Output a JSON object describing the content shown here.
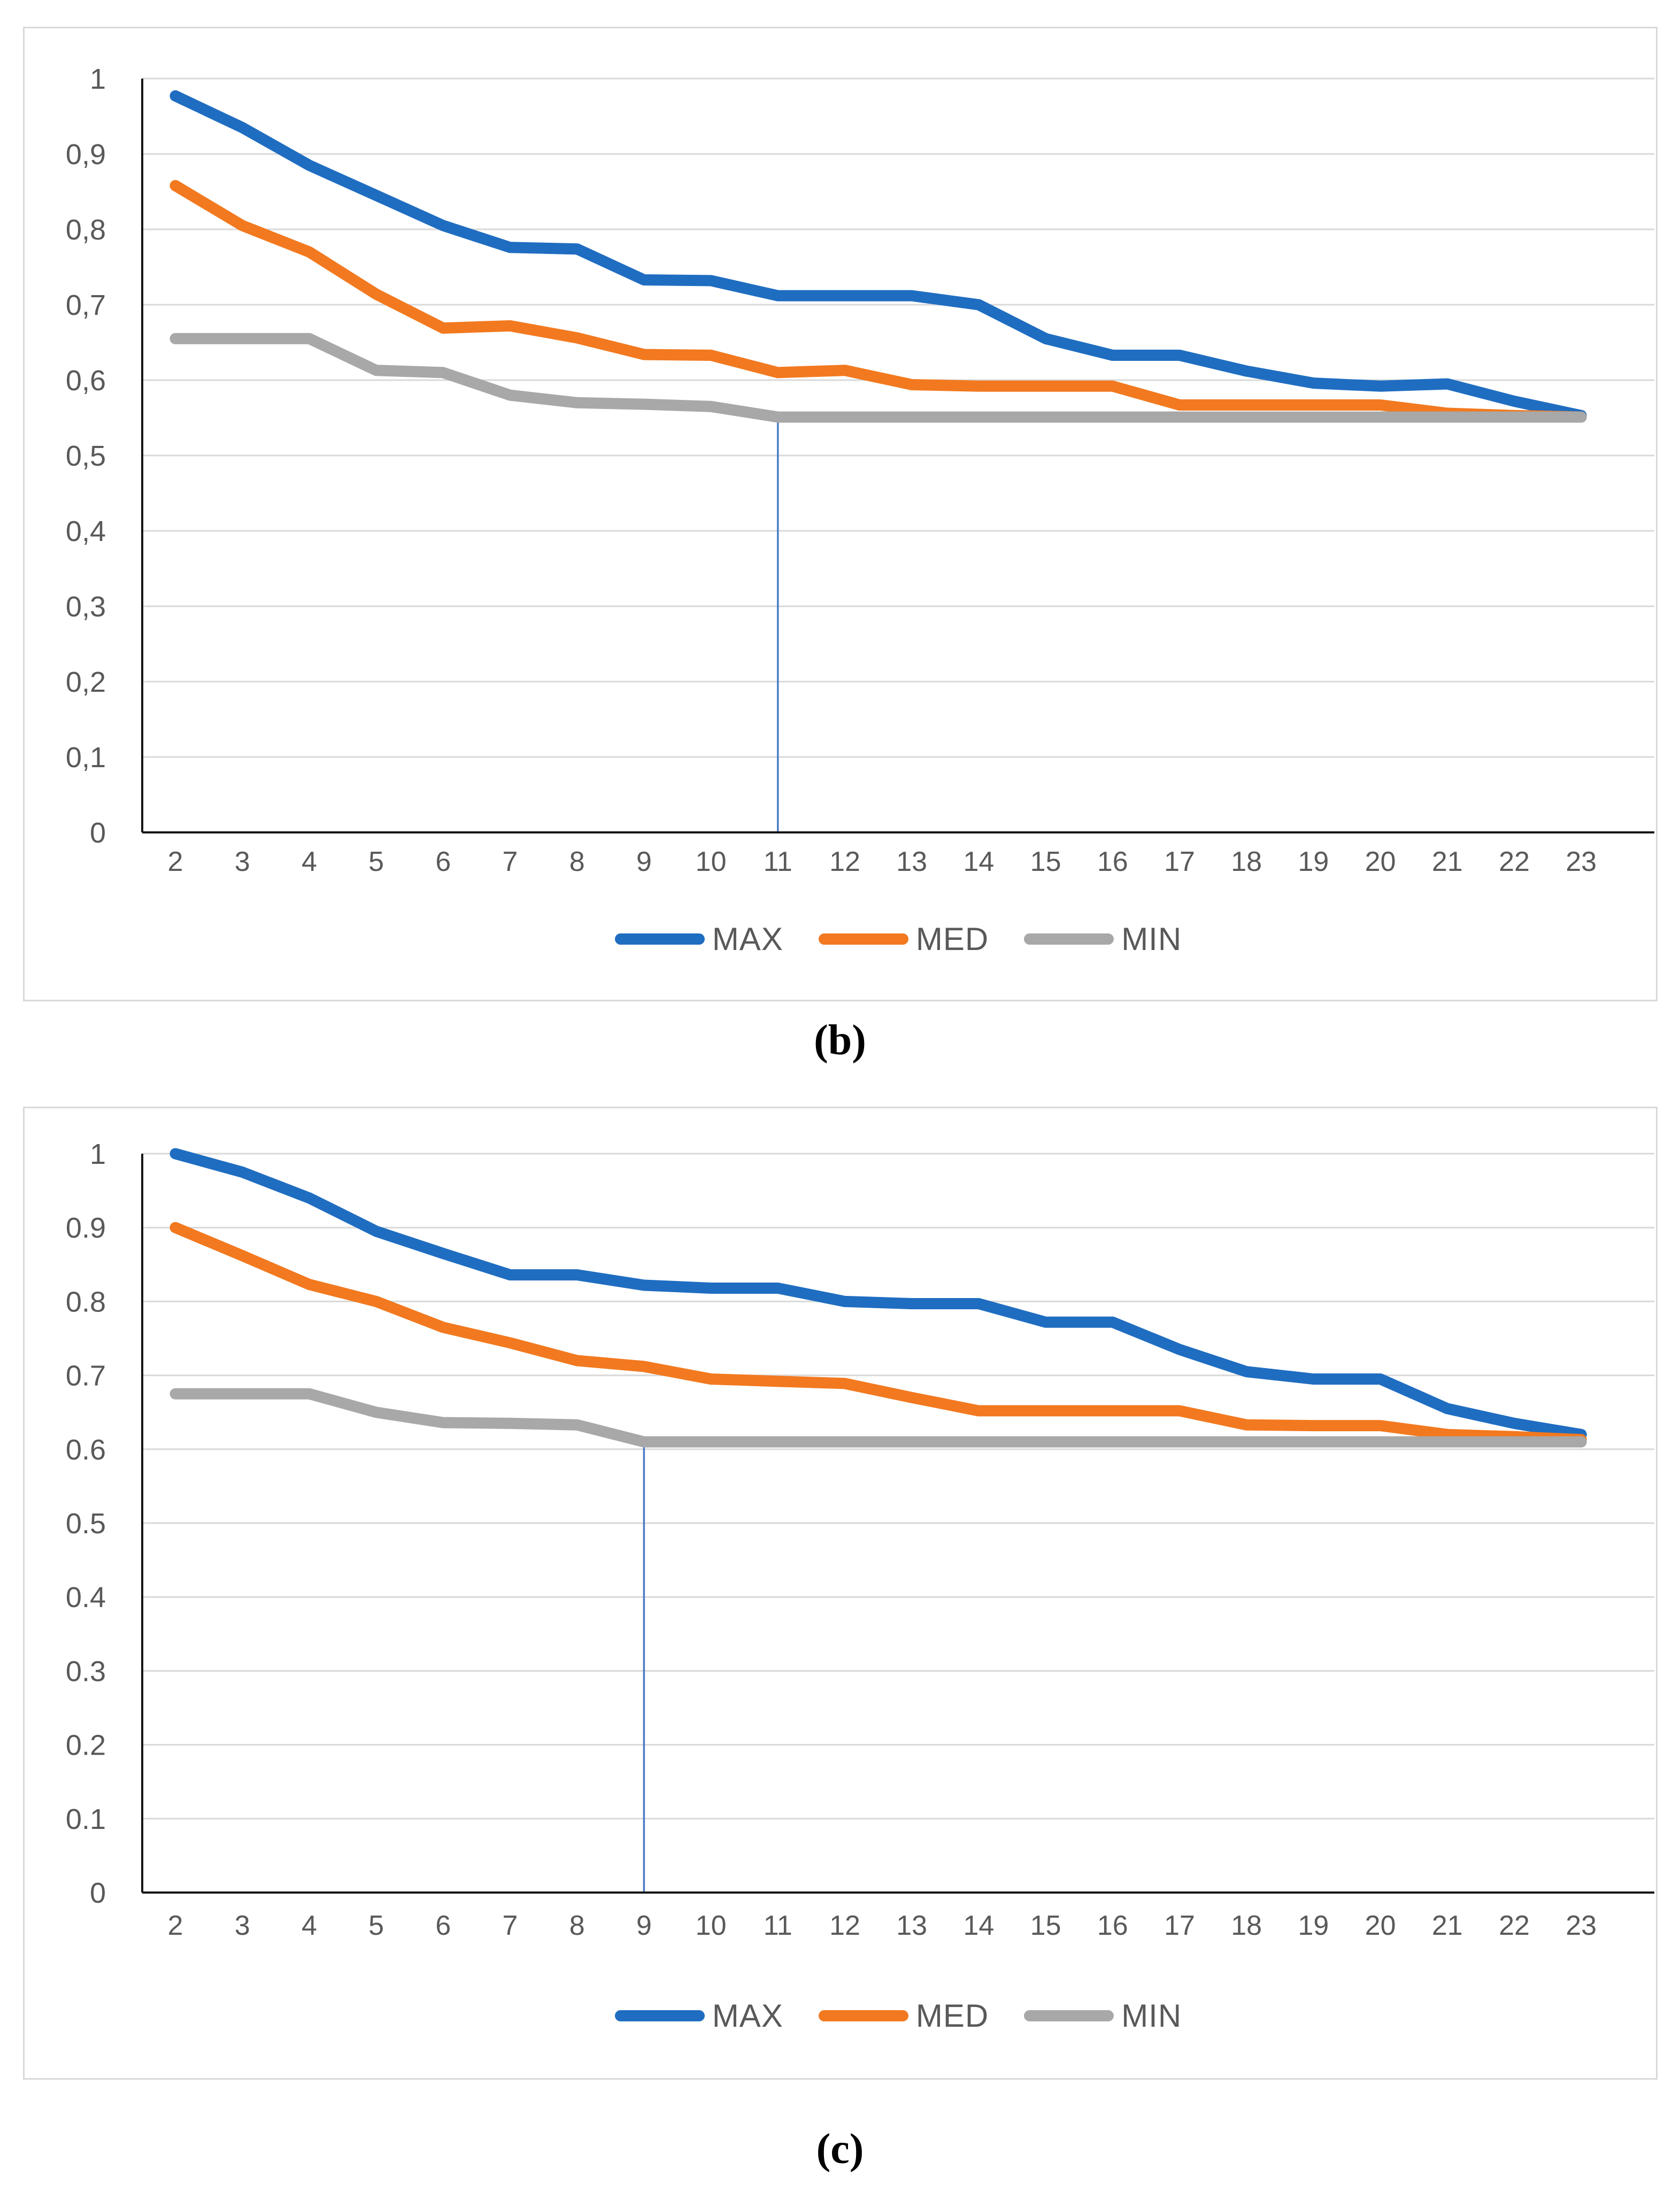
{
  "style": {
    "grid_color": "#d9d9d9",
    "axis_color": "#151515",
    "tick_text_color": "#595959",
    "panel_border_color": "#d9d9d9",
    "background_color": "#ffffff",
    "annotation_line_color": "#4a7cc7"
  },
  "chart_data": [
    {
      "type": "line",
      "caption": "(b)",
      "title": "",
      "xlabel": "",
      "ylabel": "",
      "ylim": [
        0,
        1
      ],
      "grid": true,
      "legend_position": "bottom",
      "categories": [
        "2",
        "3",
        "4",
        "5",
        "6",
        "7",
        "8",
        "9",
        "10",
        "11",
        "12",
        "13",
        "14",
        "15",
        "16",
        "17",
        "18",
        "19",
        "20",
        "21",
        "22",
        "23"
      ],
      "y_axis": {
        "tick_values": [
          1,
          0.9,
          0.8,
          0.7,
          0.6,
          0.5,
          0.4,
          0.3,
          0.2,
          0.1,
          0
        ],
        "tick_labels": [
          "1",
          "0,9",
          "0,8",
          "0,7",
          "0,6",
          "0,5",
          "0,4",
          "0,3",
          "0,2",
          "0,1",
          "0"
        ]
      },
      "series": [
        {
          "name": "MAX",
          "color": "#1f6dc1",
          "values": [
            0.977,
            0.935,
            0.885,
            0.845,
            0.805,
            0.776,
            0.774,
            0.733,
            0.732,
            0.712,
            0.712,
            0.712,
            0.7,
            0.655,
            0.633,
            0.633,
            0.612,
            0.596,
            0.592,
            0.595,
            0.572,
            0.553
          ]
        },
        {
          "name": "MED",
          "color": "#f2791f",
          "values": [
            0.858,
            0.805,
            0.77,
            0.714,
            0.669,
            0.672,
            0.656,
            0.634,
            0.633,
            0.61,
            0.613,
            0.594,
            0.592,
            0.592,
            0.592,
            0.567,
            0.567,
            0.567,
            0.567,
            0.556,
            0.553,
            0.551
          ]
        },
        {
          "name": "MIN",
          "color": "#a8a8a8",
          "values": [
            0.655,
            0.655,
            0.655,
            0.613,
            0.61,
            0.58,
            0.57,
            0.568,
            0.565,
            0.551,
            0.551,
            0.551,
            0.551,
            0.551,
            0.551,
            0.551,
            0.551,
            0.551,
            0.551,
            0.551,
            0.551,
            0.551
          ]
        }
      ],
      "annotation": {
        "x": "11",
        "y_top": 0.551
      }
    },
    {
      "type": "line",
      "caption": "(c)",
      "title": "",
      "xlabel": "",
      "ylabel": "",
      "ylim": [
        0,
        1
      ],
      "grid": true,
      "legend_position": "bottom",
      "categories": [
        "2",
        "3",
        "4",
        "5",
        "6",
        "7",
        "8",
        "9",
        "10",
        "11",
        "12",
        "13",
        "14",
        "15",
        "16",
        "17",
        "18",
        "19",
        "20",
        "21",
        "22",
        "23"
      ],
      "y_axis": {
        "tick_values": [
          1,
          0.9,
          0.8,
          0.7,
          0.6,
          0.5,
          0.4,
          0.3,
          0.2,
          0.1,
          0
        ],
        "tick_labels": [
          "1",
          "0.9",
          "0.8",
          "0.7",
          "0.6",
          "0.5",
          "0.4",
          "0.3",
          "0.2",
          "0.1",
          "0"
        ]
      },
      "series": [
        {
          "name": "MAX",
          "color": "#1f6dc1",
          "values": [
            1.0,
            0.975,
            0.94,
            0.895,
            0.865,
            0.836,
            0.836,
            0.822,
            0.818,
            0.818,
            0.8,
            0.797,
            0.797,
            0.772,
            0.772,
            0.735,
            0.705,
            0.695,
            0.695,
            0.655,
            0.635,
            0.62
          ]
        },
        {
          "name": "MED",
          "color": "#f2791f",
          "values": [
            0.9,
            0.862,
            0.823,
            0.8,
            0.765,
            0.744,
            0.72,
            0.712,
            0.695,
            0.692,
            0.689,
            0.67,
            0.652,
            0.652,
            0.652,
            0.652,
            0.633,
            0.632,
            0.632,
            0.62,
            0.617,
            0.613
          ]
        },
        {
          "name": "MIN",
          "color": "#a8a8a8",
          "values": [
            0.675,
            0.675,
            0.675,
            0.65,
            0.636,
            0.635,
            0.633,
            0.61,
            0.61,
            0.61,
            0.61,
            0.61,
            0.61,
            0.61,
            0.61,
            0.61,
            0.61,
            0.61,
            0.61,
            0.61,
            0.61,
            0.61
          ]
        }
      ],
      "annotation": {
        "x": "9",
        "y_top": 0.61
      }
    }
  ]
}
